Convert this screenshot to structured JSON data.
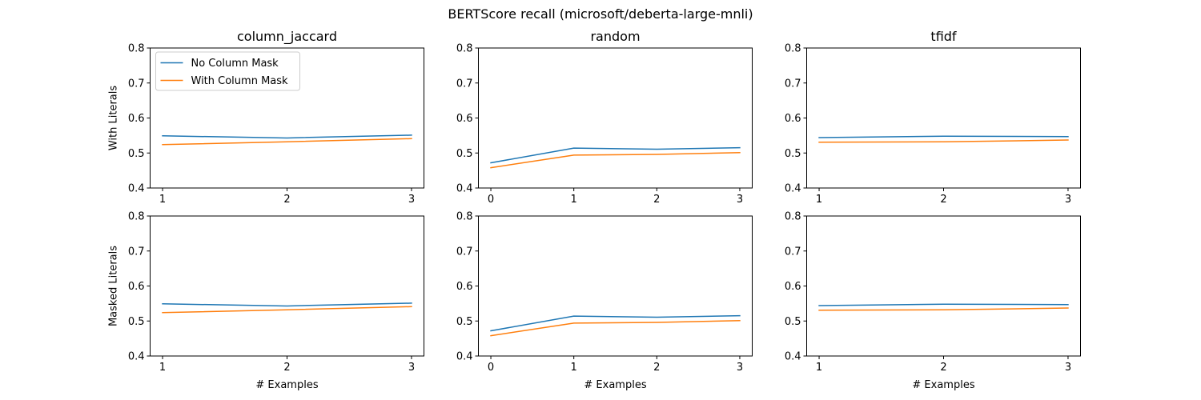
{
  "figure": {
    "suptitle": "BERTScore recall (microsoft/deberta-large-mnli)",
    "colors": {
      "axes": "#000000",
      "background": "#ffffff"
    }
  },
  "chart_data": {
    "type": "line",
    "title": "BERTScore recall (microsoft/deberta-large-mnli)",
    "layout": "2 rows x 3 columns",
    "legend": {
      "placement": "upper-left of top-left panel"
    },
    "series_styles": [
      {
        "name": "No Column Mask",
        "color": "#1f77b4"
      },
      {
        "name": "With Column Mask",
        "color": "#ff7f0e"
      }
    ],
    "panels": [
      {
        "title": "column_jaccard",
        "xlabel": "",
        "ylabel": "With Literals",
        "x": [
          1,
          2,
          3
        ],
        "xticks": [
          "1",
          "2",
          "3"
        ],
        "ylim": [
          0.4,
          0.8
        ],
        "yticks": [
          "0.4",
          "0.5",
          "0.6",
          "0.7",
          "0.8"
        ],
        "grid": false,
        "series": [
          {
            "name": "No Column Mask",
            "values": [
              0.549,
              0.543,
              0.551
            ]
          },
          {
            "name": "With Column Mask",
            "values": [
              0.524,
              0.532,
              0.541
            ]
          }
        ]
      },
      {
        "title": "random",
        "xlabel": "",
        "ylabel": "",
        "x": [
          0,
          1,
          2,
          3
        ],
        "xticks": [
          "0",
          "1",
          "2",
          "3"
        ],
        "ylim": [
          0.4,
          0.8
        ],
        "yticks": [
          "0.4",
          "0.5",
          "0.6",
          "0.7",
          "0.8"
        ],
        "grid": false,
        "series": [
          {
            "name": "No Column Mask",
            "values": [
              0.472,
              0.514,
              0.511,
              0.515
            ]
          },
          {
            "name": "With Column Mask",
            "values": [
              0.458,
              0.494,
              0.496,
              0.501
            ]
          }
        ]
      },
      {
        "title": "tfidf",
        "xlabel": "",
        "ylabel": "",
        "x": [
          1,
          2,
          3
        ],
        "xticks": [
          "1",
          "2",
          "3"
        ],
        "ylim": [
          0.4,
          0.8
        ],
        "yticks": [
          "0.4",
          "0.5",
          "0.6",
          "0.7",
          "0.8"
        ],
        "grid": false,
        "series": [
          {
            "name": "No Column Mask",
            "values": [
              0.544,
              0.548,
              0.547
            ]
          },
          {
            "name": "With Column Mask",
            "values": [
              0.531,
              0.532,
              0.537
            ]
          }
        ]
      },
      {
        "title": "",
        "xlabel": "# Examples",
        "ylabel": "Masked Literals",
        "x": [
          1,
          2,
          3
        ],
        "xticks": [
          "1",
          "2",
          "3"
        ],
        "ylim": [
          0.4,
          0.8
        ],
        "yticks": [
          "0.4",
          "0.5",
          "0.6",
          "0.7",
          "0.8"
        ],
        "grid": false,
        "series": [
          {
            "name": "No Column Mask",
            "values": [
              0.549,
              0.543,
              0.551
            ]
          },
          {
            "name": "With Column Mask",
            "values": [
              0.524,
              0.532,
              0.541
            ]
          }
        ]
      },
      {
        "title": "",
        "xlabel": "# Examples",
        "ylabel": "",
        "x": [
          0,
          1,
          2,
          3
        ],
        "xticks": [
          "0",
          "1",
          "2",
          "3"
        ],
        "ylim": [
          0.4,
          0.8
        ],
        "yticks": [
          "0.4",
          "0.5",
          "0.6",
          "0.7",
          "0.8"
        ],
        "grid": false,
        "series": [
          {
            "name": "No Column Mask",
            "values": [
              0.472,
              0.514,
              0.511,
              0.515
            ]
          },
          {
            "name": "With Column Mask",
            "values": [
              0.458,
              0.494,
              0.496,
              0.501
            ]
          }
        ]
      },
      {
        "title": "",
        "xlabel": "# Examples",
        "ylabel": "",
        "x": [
          1,
          2,
          3
        ],
        "xticks": [
          "1",
          "2",
          "3"
        ],
        "ylim": [
          0.4,
          0.8
        ],
        "yticks": [
          "0.4",
          "0.5",
          "0.6",
          "0.7",
          "0.8"
        ],
        "grid": false,
        "series": [
          {
            "name": "No Column Mask",
            "values": [
              0.544,
              0.548,
              0.547
            ]
          },
          {
            "name": "With Column Mask",
            "values": [
              0.531,
              0.532,
              0.537
            ]
          }
        ]
      }
    ]
  }
}
